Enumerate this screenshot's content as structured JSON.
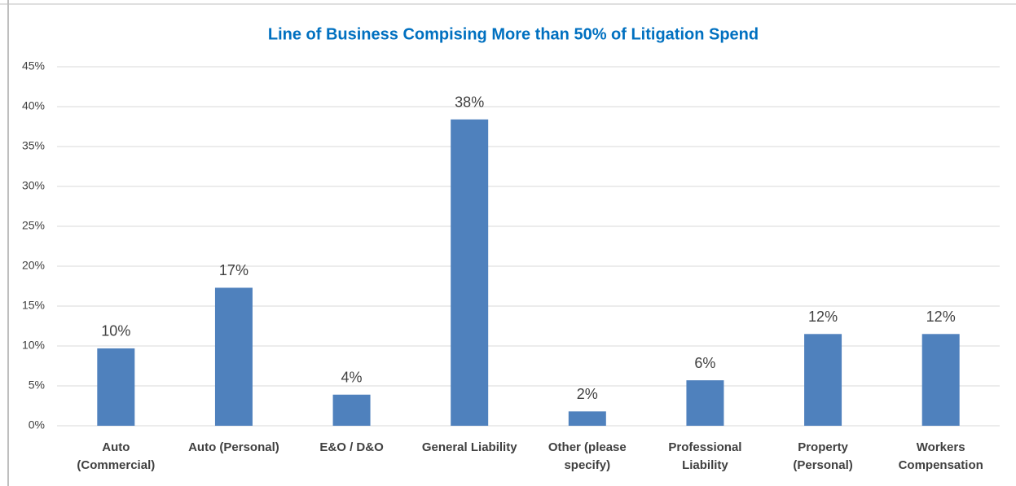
{
  "chart_data": {
    "type": "bar",
    "title": "Line of Business Compising More than 50% of Litigation Spend",
    "categories": [
      "Auto (Commercial)",
      "Auto (Personal)",
      "E&O / D&O",
      "General Liability",
      "Other (please specify)",
      "Professional Liability",
      "Property (Personal)",
      "Workers Compensation"
    ],
    "values": [
      9.7,
      17.3,
      3.9,
      38.4,
      1.8,
      5.7,
      11.5,
      11.5
    ],
    "value_labels": [
      "10%",
      "17%",
      "4%",
      "38%",
      "2%",
      "6%",
      "12%",
      "12%"
    ],
    "color": "#4f81bd",
    "ylim": [
      0,
      45
    ],
    "yticks": [
      {
        "value": 0,
        "label": "0%"
      },
      {
        "value": 5,
        "label": "5%"
      },
      {
        "value": 10,
        "label": "10%"
      },
      {
        "value": 15,
        "label": "15%"
      },
      {
        "value": 20,
        "label": "20%"
      },
      {
        "value": 25,
        "label": "25%"
      },
      {
        "value": 30,
        "label": "30%"
      },
      {
        "value": 35,
        "label": "35%"
      },
      {
        "value": 40,
        "label": "40%"
      },
      {
        "value": 45,
        "label": "45%"
      }
    ],
    "grid": true
  }
}
